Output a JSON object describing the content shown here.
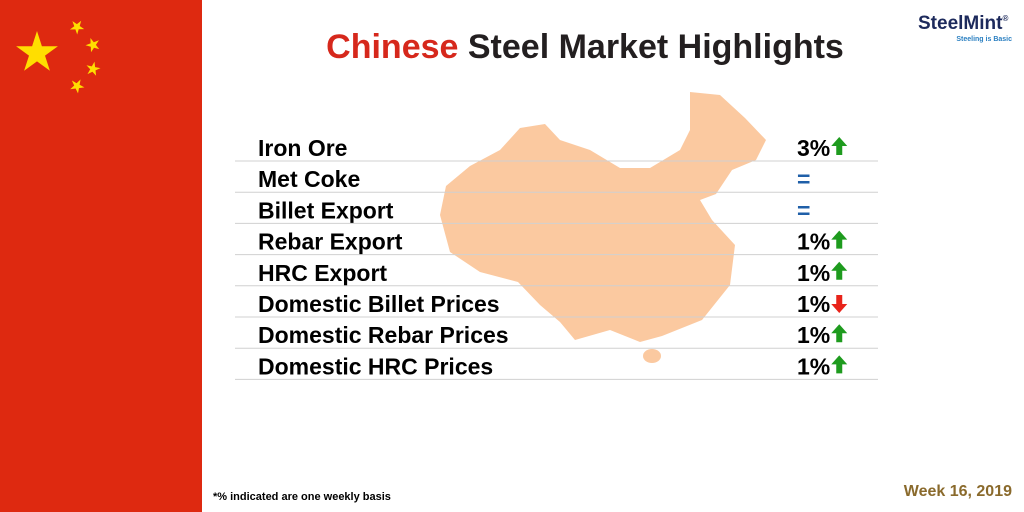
{
  "logo": {
    "name": "SteelMint",
    "mark": "®",
    "tagline": "Steeling is Basic"
  },
  "title": {
    "highlight": "Chinese",
    "rest": "Steel Market Highlights"
  },
  "rows": [
    {
      "label": "Iron Ore",
      "change": "3%",
      "arrow": "up"
    },
    {
      "label": "Met Coke",
      "change": "="
    },
    {
      "label": "Billet Export",
      "change": "="
    },
    {
      "label": "Rebar Export",
      "change": "1%",
      "arrow": "up"
    },
    {
      "label": "HRC Export",
      "change": "1%",
      "arrow": "up"
    },
    {
      "label": "Domestic Billet Prices",
      "change": "1%",
      "arrow": "down"
    },
    {
      "label": "Domestic Rebar Prices",
      "change": "1%",
      "arrow": "up"
    },
    {
      "label": "Domestic HRC Prices",
      "change": "1%",
      "arrow": "up"
    }
  ],
  "footnote": "*% indicated are one weekly basis",
  "week": "Week 16, 2019"
}
